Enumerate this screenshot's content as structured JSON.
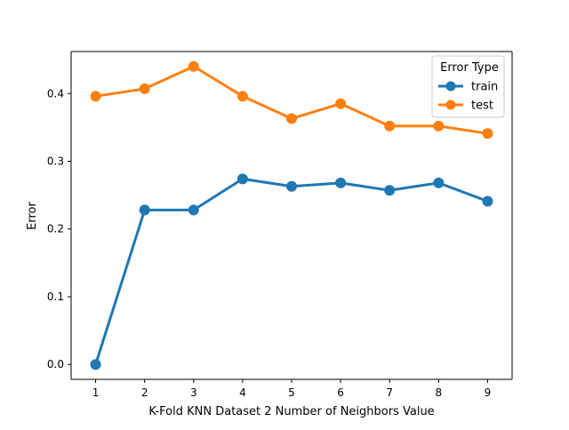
{
  "chart_data": {
    "type": "line",
    "title": "",
    "xlabel": "K-Fold KNN Dataset 2 Number of Neighbors Value",
    "ylabel": "Error",
    "x": [
      1,
      2,
      3,
      4,
      5,
      6,
      7,
      8,
      9
    ],
    "x_ticks": [
      "1",
      "2",
      "3",
      "4",
      "5",
      "6",
      "7",
      "8",
      "9"
    ],
    "xlim": [
      0.5,
      9.5
    ],
    "ylim": [
      -0.022,
      0.462
    ],
    "y_ticks": [
      0.0,
      0.1,
      0.2,
      0.3,
      0.4
    ],
    "y_tick_labels": [
      "0.0",
      "0.1",
      "0.2",
      "0.3",
      "0.4"
    ],
    "grid": false,
    "legend": {
      "title": "Error Type",
      "placement": "top-right"
    },
    "series": [
      {
        "name": "train",
        "color": "#1f77b4",
        "values": [
          0.0,
          0.228,
          0.228,
          0.274,
          0.263,
          0.268,
          0.257,
          0.268,
          0.241
        ]
      },
      {
        "name": "test",
        "color": "#ff7f0e",
        "values": [
          0.396,
          0.407,
          0.44,
          0.396,
          0.363,
          0.385,
          0.352,
          0.352,
          0.341
        ]
      }
    ]
  }
}
